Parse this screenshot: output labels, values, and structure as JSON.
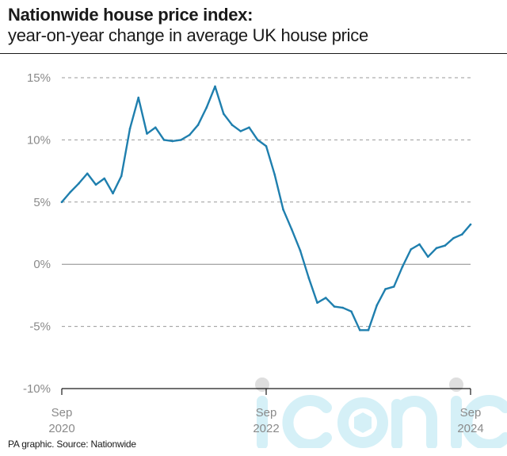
{
  "header": {
    "title": "Nationwide house price index:",
    "subtitle": "year-on-year change in average UK house price"
  },
  "footer": {
    "source": "PA graphic. Source: Nationwide"
  },
  "watermark": {
    "text": "iconic"
  },
  "colors": {
    "line": "#1f7fae",
    "grid": "#9a9a9a",
    "axis": "#1a1a1a",
    "tick_label": "#8a8a8a",
    "watermark": "#7fd3e8"
  },
  "chart_data": {
    "type": "line",
    "title": "Nationwide house price index:",
    "subtitle": "year-on-year change in average UK house price",
    "xlabel": "",
    "ylabel": "",
    "ylim": [
      -10,
      15
    ],
    "yticks": [
      {
        "value": 15,
        "label": "15%"
      },
      {
        "value": 10,
        "label": "10%"
      },
      {
        "value": 5,
        "label": "5%"
      },
      {
        "value": 0,
        "label": "0%"
      },
      {
        "value": -5,
        "label": "-5%"
      },
      {
        "value": -10,
        "label": "-10%"
      }
    ],
    "xticks": [
      {
        "index": 0,
        "label": [
          "Sep",
          "2020"
        ]
      },
      {
        "index": 24,
        "label": [
          "Sep",
          "2022"
        ]
      },
      {
        "index": 48,
        "label": [
          "Sep",
          "2024"
        ]
      }
    ],
    "grid": true,
    "series": [
      {
        "x": [
          "2020-09",
          "2020-10",
          "2020-11",
          "2020-12",
          "2021-01",
          "2021-02",
          "2021-03",
          "2021-04",
          "2021-05",
          "2021-06",
          "2021-07",
          "2021-08",
          "2021-09",
          "2021-10",
          "2021-11",
          "2021-12",
          "2022-01",
          "2022-02",
          "2022-03",
          "2022-04",
          "2022-05",
          "2022-06",
          "2022-07",
          "2022-08",
          "2022-09",
          "2022-10",
          "2022-11",
          "2022-12",
          "2023-01",
          "2023-02",
          "2023-03",
          "2023-04",
          "2023-05",
          "2023-06",
          "2023-07",
          "2023-08",
          "2023-09",
          "2023-10",
          "2023-11",
          "2023-12",
          "2024-01",
          "2024-02",
          "2024-03",
          "2024-04",
          "2024-05",
          "2024-06",
          "2024-07",
          "2024-08",
          "2024-09"
        ],
        "values": [
          5.0,
          5.8,
          6.5,
          7.3,
          6.4,
          6.9,
          5.7,
          7.1,
          10.9,
          13.4,
          10.5,
          11.0,
          10.0,
          9.9,
          10.0,
          10.4,
          11.2,
          12.6,
          14.3,
          12.1,
          11.2,
          10.7,
          11.0,
          10.0,
          9.5,
          7.2,
          4.4,
          2.8,
          1.1,
          -1.1,
          -3.1,
          -2.7,
          -3.4,
          -3.5,
          -3.8,
          -5.3,
          -5.3,
          -3.3,
          -2.0,
          -1.8,
          -0.2,
          1.2,
          1.6,
          0.6,
          1.3,
          1.5,
          2.1,
          2.4,
          3.2
        ]
      }
    ]
  }
}
